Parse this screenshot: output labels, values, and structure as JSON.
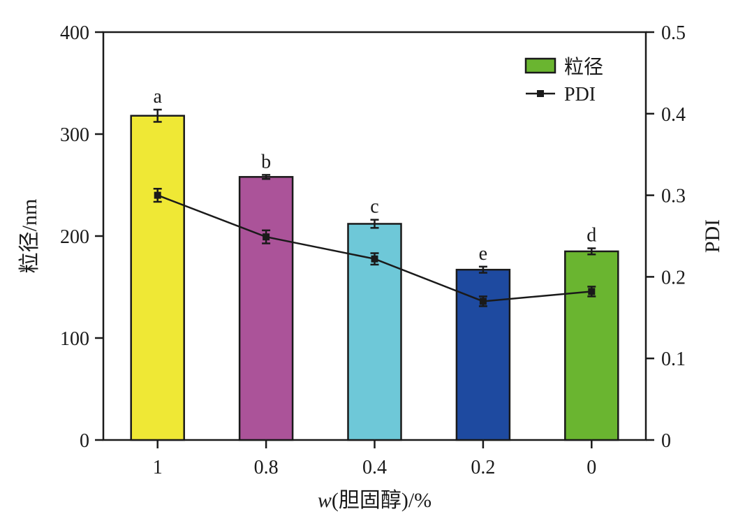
{
  "chart_data": {
    "type": "bar",
    "categories": [
      "1",
      "0.8",
      "0.4",
      "0.2",
      "0"
    ],
    "series": [
      {
        "name": "粒径",
        "kind": "bar",
        "axis": "left",
        "values": [
          318,
          258,
          212,
          167,
          185
        ],
        "errors": [
          6,
          2,
          4,
          3,
          3
        ],
        "colors": [
          "#efe835",
          "#ab5399",
          "#6ec8d8",
          "#1e4aa0",
          "#6ab530"
        ],
        "legend_color": "#6ab530"
      },
      {
        "name": "PDI",
        "kind": "line",
        "axis": "right",
        "values": [
          0.3,
          0.249,
          0.222,
          0.17,
          0.182
        ],
        "errors": [
          0.008,
          0.008,
          0.007,
          0.006,
          0.006
        ],
        "color": "#1a1a1a"
      }
    ],
    "significance": [
      "a",
      "b",
      "c",
      "e",
      "d"
    ],
    "xlabel_italic": "w",
    "xlabel_rest": "(胆固醇)/%",
    "ylabel": "粒径/nm",
    "y2label": "PDI",
    "ylim": [
      0,
      400
    ],
    "y2lim": [
      0,
      0.5
    ],
    "yticks": [
      0,
      100,
      200,
      300,
      400
    ],
    "y2ticks": [
      "0",
      "0.1",
      "0.2",
      "0.3",
      "0.4",
      "0.5"
    ],
    "grid": false,
    "legend_position": "top-right"
  }
}
